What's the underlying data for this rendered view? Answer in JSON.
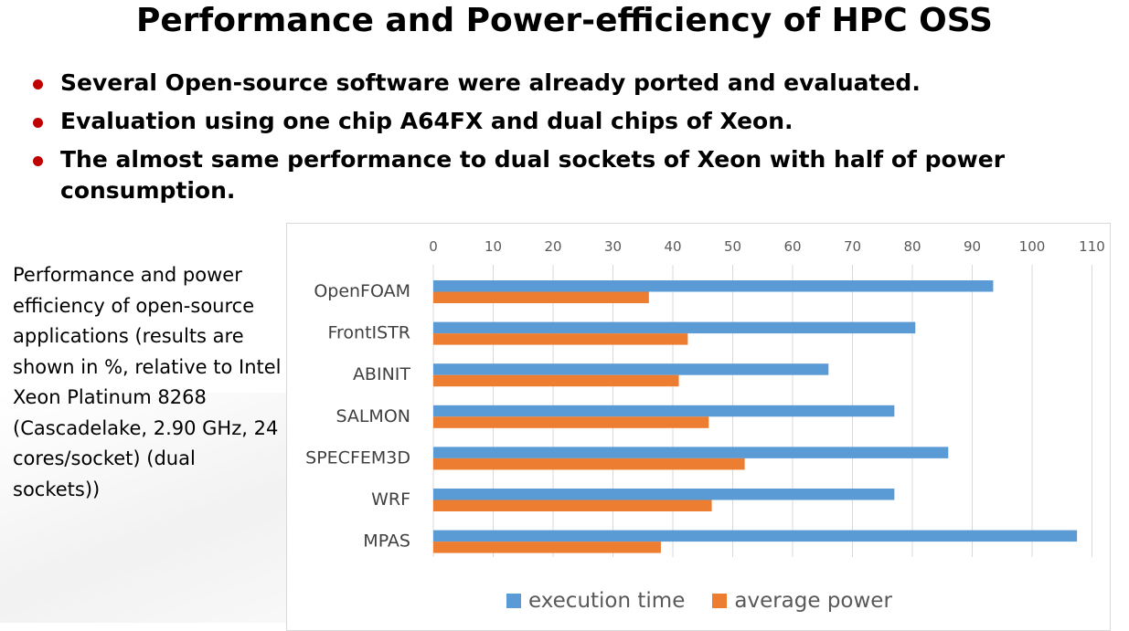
{
  "slide": {
    "title": "Performance and Power-efficiency of HPC OSS",
    "bullets": [
      "Several Open-source software were already ported and evaluated.",
      "Evaluation using one chip A64FX and dual chips of Xeon.",
      "The almost same performance to dual sockets of Xeon with half of power consumption."
    ],
    "side_note": "Performance and power efficiency of open-source applications (results are shown in %, relative to Intel Xeon Platinum 8268 (Cascadelake, 2.90 GHz, 24 cores/socket) (dual sockets))",
    "bullet_color": "#c00000"
  },
  "chart_data": {
    "type": "bar",
    "orientation": "horizontal",
    "categories": [
      "OpenFOAM",
      "FrontISTR",
      "ABINIT",
      "SALMON",
      "SPECFEM3D",
      "WRF",
      "MPAS"
    ],
    "series": [
      {
        "name": "execution time",
        "color": "#5b9bd5",
        "values": [
          93.5,
          80.5,
          66,
          77,
          86,
          77,
          107.5
        ]
      },
      {
        "name": "average power",
        "color": "#ed7d31",
        "values": [
          36,
          42.5,
          41,
          46,
          52,
          46.5,
          38
        ]
      }
    ],
    "xticks": [
      "0",
      "10",
      "20",
      "30",
      "40",
      "50",
      "60",
      "70",
      "80",
      "90",
      "100",
      "110"
    ],
    "xlim": [
      0,
      110
    ],
    "axis_position": "top",
    "grid": true,
    "legend": "bottom"
  }
}
